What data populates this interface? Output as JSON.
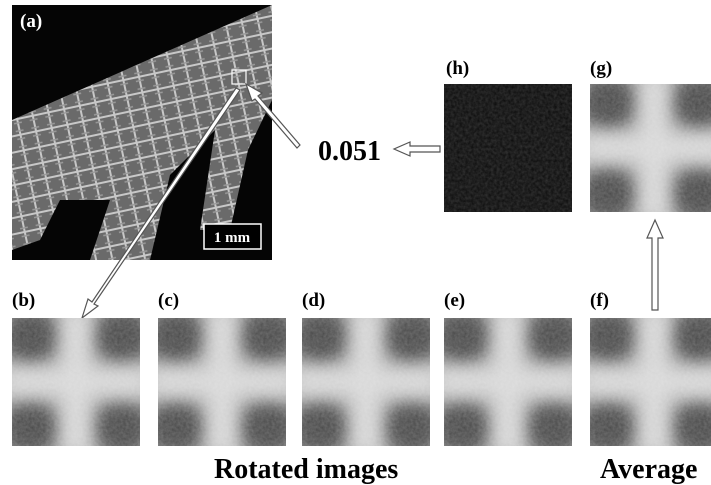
{
  "panels": {
    "a": "(a)",
    "b": "(b)",
    "c": "(c)",
    "d": "(d)",
    "e": "(e)",
    "f": "(f)",
    "g": "(g)",
    "h": "(h)"
  },
  "scale_bar": "1 mm",
  "difference_value": "0.051",
  "captions": {
    "rotated": "Rotated images",
    "average": "Average"
  }
}
